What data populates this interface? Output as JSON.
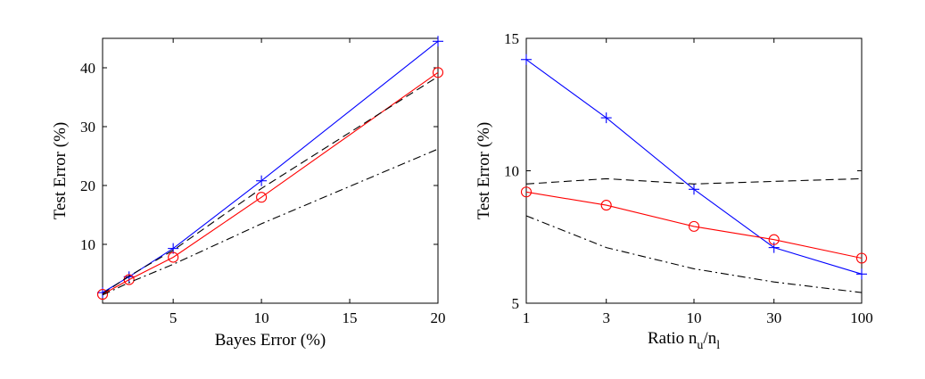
{
  "chart_data": [
    {
      "type": "line",
      "xlabel": "Bayes Error (%)",
      "ylabel": "Test Error (%)",
      "xlim": [
        1,
        20
      ],
      "ylim": [
        0,
        45
      ],
      "xscale": "linear",
      "xticks": [
        5,
        10,
        15,
        20
      ],
      "yticks": [
        10,
        20,
        30,
        40
      ],
      "series": [
        {
          "name": "plus-series",
          "color": "#0000ff",
          "linestyle": "solid",
          "marker": "plus",
          "x": [
            1,
            2.5,
            5,
            10,
            20
          ],
          "y": [
            1.8,
            4.5,
            9.3,
            20.8,
            44.5
          ],
          "markers_at": [
            0,
            1,
            2,
            3,
            4
          ]
        },
        {
          "name": "circle-series",
          "color": "#ff0000",
          "linestyle": "solid",
          "marker": "circle",
          "x": [
            1,
            2.5,
            5,
            10,
            20
          ],
          "y": [
            1.5,
            4.0,
            7.8,
            18.0,
            39.2
          ],
          "markers_at": [
            0,
            1,
            2,
            3,
            4
          ]
        },
        {
          "name": "dashed-series",
          "color": "#000000",
          "linestyle": "dashed",
          "marker": "none",
          "x": [
            1,
            2.5,
            5,
            10,
            20
          ],
          "y": [
            1.6,
            4.6,
            9.0,
            19.5,
            38.5
          ],
          "markers_at": []
        },
        {
          "name": "dashdot-series",
          "color": "#000000",
          "linestyle": "dashdot",
          "marker": "none",
          "x": [
            1,
            2.5,
            5,
            10,
            20
          ],
          "y": [
            1.4,
            3.5,
            6.6,
            13.5,
            26.2
          ],
          "markers_at": []
        }
      ]
    },
    {
      "type": "line",
      "xlabel_main": "Ratio n",
      "xlabel_sub1": "u",
      "xlabel_mid": "/n",
      "xlabel_sub2": "l",
      "ylabel": "Test Error (%)",
      "xlim": [
        1,
        100
      ],
      "ylim": [
        5,
        15
      ],
      "xscale": "log",
      "xticks": [
        1,
        3,
        10,
        30,
        100
      ],
      "yticks": [
        5,
        10,
        15
      ],
      "series": [
        {
          "name": "plus-series",
          "color": "#0000ff",
          "linestyle": "solid",
          "marker": "plus",
          "x": [
            1,
            3,
            10,
            30,
            100
          ],
          "y": [
            14.2,
            12.0,
            9.3,
            7.1,
            6.1
          ],
          "markers_at": [
            0,
            1,
            2,
            3,
            4
          ]
        },
        {
          "name": "circle-series",
          "color": "#ff0000",
          "linestyle": "solid",
          "marker": "circle",
          "x": [
            1,
            3,
            10,
            30,
            100
          ],
          "y": [
            9.2,
            8.7,
            7.9,
            7.4,
            6.7
          ],
          "markers_at": [
            0,
            1,
            2,
            3,
            4
          ]
        },
        {
          "name": "dashed-series",
          "color": "#000000",
          "linestyle": "dashed",
          "marker": "none",
          "x": [
            1,
            3,
            10,
            30,
            100
          ],
          "y": [
            9.5,
            9.7,
            9.5,
            9.6,
            9.7
          ],
          "markers_at": []
        },
        {
          "name": "dashdot-series",
          "color": "#000000",
          "linestyle": "dashdot",
          "marker": "none",
          "x": [
            1,
            3,
            10,
            30,
            100
          ],
          "y": [
            8.3,
            7.1,
            6.3,
            5.8,
            5.4
          ],
          "markers_at": []
        }
      ]
    }
  ]
}
